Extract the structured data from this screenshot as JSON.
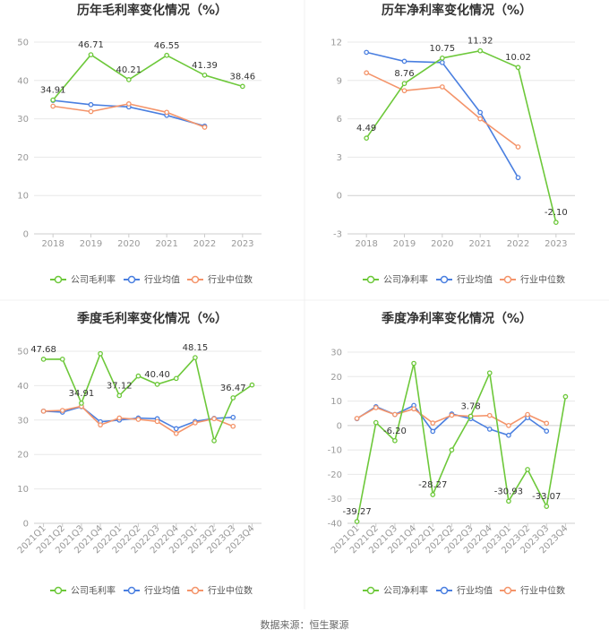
{
  "source": "数据来源：恒生聚源",
  "colors": {
    "company": "#6dc83a",
    "avg": "#4a7fe0",
    "median": "#f4946a",
    "grid": "#e8e8e8",
    "axis": "#cccccc"
  },
  "legend_avg": "行业均值",
  "legend_median": "行业中位数",
  "chart_data": [
    {
      "type": "line",
      "title": "历年毛利率变化情况（%）",
      "categories": [
        "2018",
        "2019",
        "2020",
        "2021",
        "2022",
        "2023"
      ],
      "ylim": [
        0,
        50
      ],
      "yticks": [
        0,
        10,
        20,
        30,
        40,
        50
      ],
      "ytick_labels": [
        "0",
        "10",
        "20",
        "30",
        "40",
        "50"
      ],
      "series": [
        {
          "name": "公司毛利率",
          "key": "company",
          "values": [
            34.91,
            46.71,
            40.21,
            46.55,
            41.39,
            38.46
          ]
        },
        {
          "name": "行业均值",
          "key": "avg",
          "values": [
            34.8,
            33.7,
            33.1,
            30.9,
            28.1,
            null
          ]
        },
        {
          "name": "行业中位数",
          "key": "median",
          "values": [
            33.3,
            31.9,
            33.9,
            31.7,
            27.8,
            null
          ]
        }
      ],
      "data_labels": [
        {
          "index": 0,
          "text": "34.91",
          "pos": "above"
        },
        {
          "index": 1,
          "text": "46.71",
          "pos": "above"
        },
        {
          "index": 2,
          "text": "40.21",
          "pos": "above"
        },
        {
          "index": 3,
          "text": "46.55",
          "pos": "above"
        },
        {
          "index": 4,
          "text": "41.39",
          "pos": "above"
        },
        {
          "index": 5,
          "text": "38.46",
          "pos": "above"
        }
      ]
    },
    {
      "type": "line",
      "title": "历年净利率变化情况（%）",
      "categories": [
        "2018",
        "2019",
        "2020",
        "2021",
        "2022",
        "2023"
      ],
      "ylim": [
        -3,
        12
      ],
      "yticks": [
        -3,
        0,
        3,
        6,
        9,
        12
      ],
      "ytick_labels": [
        "-3",
        "0",
        "3",
        "6",
        "9",
        "12"
      ],
      "series": [
        {
          "name": "公司净利率",
          "key": "company",
          "values": [
            4.49,
            8.76,
            10.75,
            11.32,
            10.02,
            -2.1
          ]
        },
        {
          "name": "行业均值",
          "key": "avg",
          "values": [
            11.2,
            10.5,
            10.4,
            6.5,
            1.4,
            null
          ]
        },
        {
          "name": "行业中位数",
          "key": "median",
          "values": [
            9.6,
            8.2,
            8.5,
            6.0,
            3.8,
            null
          ]
        }
      ],
      "data_labels": [
        {
          "index": 0,
          "text": "4.49",
          "pos": "above"
        },
        {
          "index": 1,
          "text": "8.76",
          "pos": "above"
        },
        {
          "index": 2,
          "text": "10.75",
          "pos": "above"
        },
        {
          "index": 3,
          "text": "11.32",
          "pos": "above"
        },
        {
          "index": 4,
          "text": "10.02",
          "pos": "above"
        },
        {
          "index": 5,
          "text": "-2.10",
          "pos": "above"
        }
      ]
    },
    {
      "type": "line",
      "title": "季度毛利率变化情况（%）",
      "categories": [
        "2021Q1",
        "2021Q2",
        "2021Q3",
        "2021Q4",
        "2022Q1",
        "2022Q2",
        "2022Q3",
        "2022Q4",
        "2023Q1",
        "2023Q2",
        "2023Q3",
        "2023Q4"
      ],
      "ylim": [
        0,
        50
      ],
      "yticks": [
        0,
        10,
        20,
        30,
        40,
        50
      ],
      "ytick_labels": [
        "0",
        "10",
        "20",
        "30",
        "40",
        "50"
      ],
      "series": [
        {
          "name": "公司毛利率",
          "key": "company",
          "values": [
            47.68,
            47.7,
            34.91,
            49.3,
            37.12,
            42.8,
            40.4,
            42.1,
            48.15,
            24.0,
            36.47,
            40.2
          ]
        },
        {
          "name": "行业均值",
          "key": "avg",
          "values": [
            32.6,
            32.3,
            33.9,
            29.5,
            30.0,
            30.6,
            30.4,
            27.5,
            29.6,
            30.5,
            30.8,
            null
          ]
        },
        {
          "name": "行业中位数",
          "key": "median",
          "values": [
            32.6,
            32.8,
            34.0,
            28.6,
            30.6,
            30.2,
            29.6,
            26.1,
            29.2,
            30.4,
            28.2,
            null
          ]
        }
      ],
      "data_labels": [
        {
          "index": 0,
          "text": "47.68",
          "pos": "above"
        },
        {
          "index": 2,
          "text": "34.91",
          "pos": "above"
        },
        {
          "index": 4,
          "text": "37.12",
          "pos": "above"
        },
        {
          "index": 6,
          "text": "40.40",
          "pos": "above"
        },
        {
          "index": 8,
          "text": "48.15",
          "pos": "above"
        },
        {
          "index": 10,
          "text": "36.47",
          "pos": "above"
        }
      ]
    },
    {
      "type": "line",
      "title": "季度净利率变化情况（%）",
      "categories": [
        "2021Q1",
        "2021Q2",
        "2021Q3",
        "2021Q4",
        "2022Q1",
        "2022Q2",
        "2022Q3",
        "2022Q4",
        "2023Q1",
        "2023Q2",
        "2023Q3",
        "2023Q4"
      ],
      "ylim": [
        -40,
        30
      ],
      "yticks": [
        -40,
        -30,
        -20,
        -10,
        0,
        10,
        20,
        30
      ],
      "ytick_labels": [
        "-40",
        "-30",
        "-20",
        "-10",
        "0",
        "10",
        "20",
        "30"
      ],
      "series": [
        {
          "name": "公司净利率",
          "key": "company",
          "values": [
            -39.27,
            1.2,
            -6.2,
            25.4,
            -28.27,
            -10.0,
            3.78,
            21.5,
            -30.93,
            -18.0,
            -33.07,
            11.8
          ]
        },
        {
          "name": "行业均值",
          "key": "avg",
          "values": [
            2.8,
            7.7,
            4.5,
            8.2,
            -2.4,
            4.7,
            2.8,
            -1.5,
            -4.0,
            3.2,
            -2.3,
            null
          ]
        },
        {
          "name": "行业中位数",
          "key": "median",
          "values": [
            2.9,
            7.3,
            4.5,
            6.8,
            1.0,
            4.2,
            3.8,
            4.1,
            0.0,
            4.5,
            0.9,
            null
          ]
        }
      ],
      "data_labels": [
        {
          "index": 0,
          "text": "-39.27",
          "pos": "above"
        },
        {
          "index": 2,
          "text": "-6.20",
          "pos": "above"
        },
        {
          "index": 4,
          "text": "-28.27",
          "pos": "above"
        },
        {
          "index": 6,
          "text": "3.78",
          "pos": "above"
        },
        {
          "index": 8,
          "text": "-30.93",
          "pos": "above"
        },
        {
          "index": 10,
          "text": "-33.07",
          "pos": "above"
        }
      ]
    }
  ]
}
